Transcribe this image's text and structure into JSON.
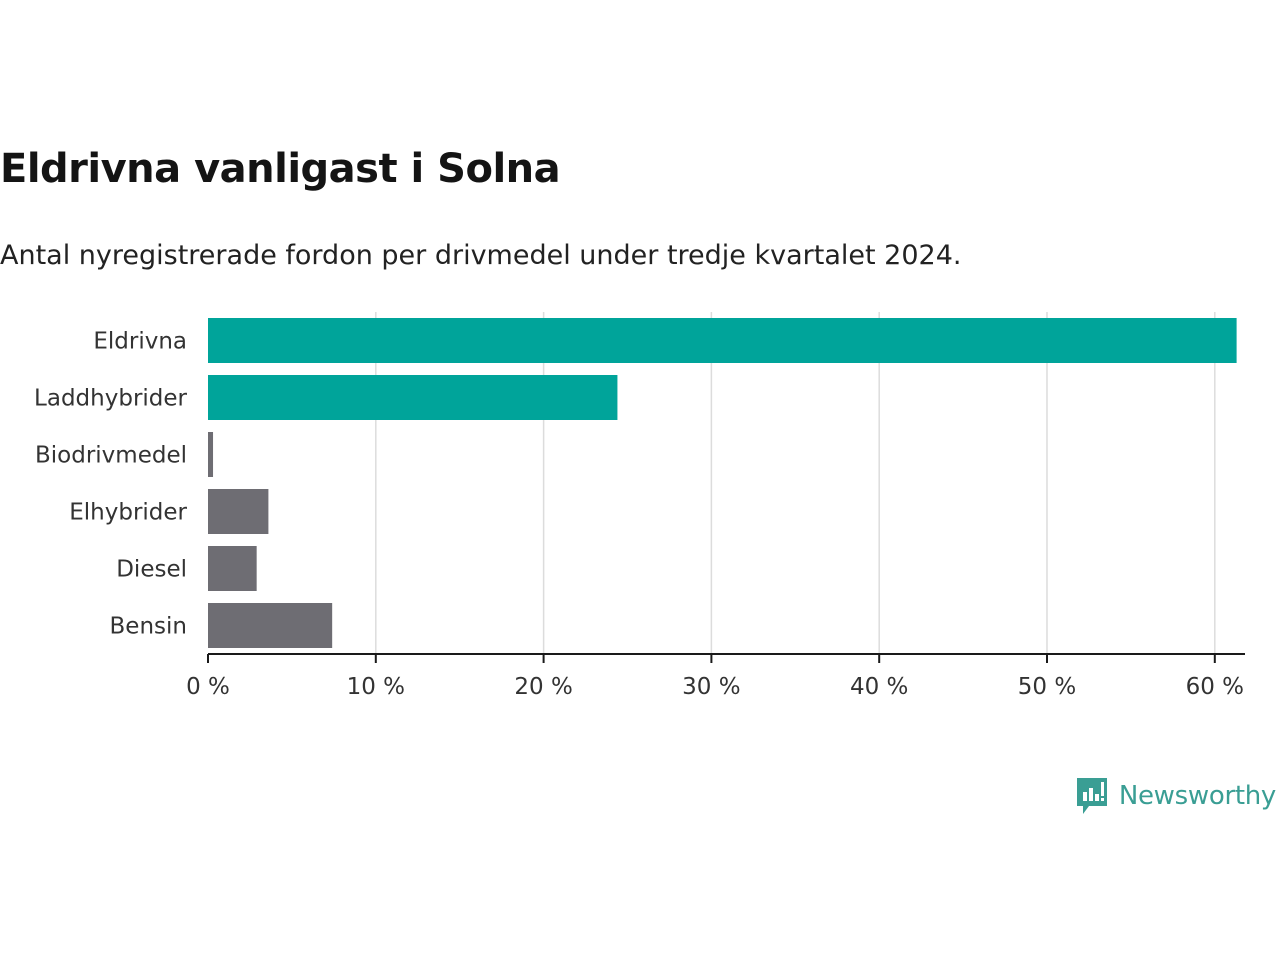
{
  "header": {
    "title": "Eldrivna vanligast i Solna",
    "subtitle": "Antal nyregistrerade fordon per drivmedel under tredje kvartalet 2024."
  },
  "chart_data": {
    "type": "bar",
    "orientation": "horizontal",
    "categories": [
      "Eldrivna",
      "Laddhybrider",
      "Biodrivmedel",
      "Elhybrider",
      "Diesel",
      "Bensin"
    ],
    "values": [
      61.3,
      24.4,
      0.3,
      3.6,
      2.9,
      7.4
    ],
    "colors": [
      "#00a49a",
      "#00a49a",
      "#6e6d73",
      "#6e6d73",
      "#6e6d73",
      "#6e6d73"
    ],
    "xlim": [
      0,
      61.8
    ],
    "xticks": [
      0,
      10,
      20,
      30,
      40,
      50,
      60
    ],
    "xtick_labels": [
      "0 %",
      "10 %",
      "20 %",
      "30 %",
      "40 %",
      "50 %",
      "60 %"
    ],
    "grid": true,
    "xlabel": "",
    "ylabel": ""
  },
  "brand": {
    "name": "Newsworthy",
    "color": "#3a9e94",
    "icon": "newsworthy-logo-icon"
  }
}
